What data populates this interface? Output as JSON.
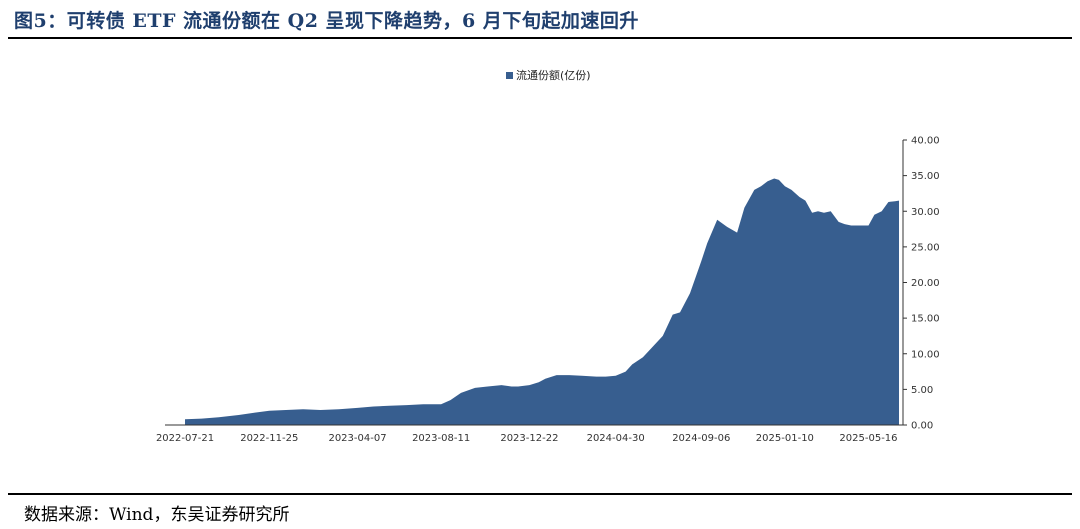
{
  "title": "图5：可转债 ETF 流通份额在 Q2 呈现下降趋势，6 月下旬起加速回升",
  "source": "数据来源：Wind，东吴证券研究所",
  "colors": {
    "area": "#375e8f",
    "title": "#1f3f6e",
    "axis": "#333333"
  },
  "chart_data": {
    "type": "area",
    "title": "",
    "xlabel": "",
    "ylabel": "",
    "legend": {
      "position": "top-center",
      "entries": [
        "流通份额(亿份)"
      ]
    },
    "x_tick_labels": [
      "2022-07-21",
      "2022-11-25",
      "2023-04-07",
      "2023-08-11",
      "2023-12-22",
      "2024-04-30",
      "2024-09-06",
      "2025-01-10",
      "2025-05-16"
    ],
    "y_tick_labels": [
      "0.00",
      "5.00",
      "10.00",
      "15.00",
      "20.00",
      "25.00",
      "30.00",
      "35.00",
      "40.00"
    ],
    "ylim": [
      0,
      40
    ],
    "y_axis_side": "right",
    "grid": false,
    "series": [
      {
        "name": "流通份额(亿份)",
        "x": [
          "2022-07-21",
          "2022-08-15",
          "2022-09-10",
          "2022-10-10",
          "2022-11-01",
          "2022-11-25",
          "2022-12-20",
          "2023-01-15",
          "2023-02-10",
          "2023-03-10",
          "2023-04-07",
          "2023-05-01",
          "2023-05-25",
          "2023-06-20",
          "2023-07-15",
          "2023-08-11",
          "2023-08-25",
          "2023-09-10",
          "2023-10-01",
          "2023-10-20",
          "2023-11-10",
          "2023-11-25",
          "2023-12-05",
          "2023-12-22",
          "2024-01-05",
          "2024-01-15",
          "2024-02-01",
          "2024-02-20",
          "2024-03-10",
          "2024-04-01",
          "2024-04-15",
          "2024-04-30",
          "2024-05-15",
          "2024-05-25",
          "2024-06-10",
          "2024-06-25",
          "2024-07-10",
          "2024-07-25",
          "2024-08-05",
          "2024-08-20",
          "2024-09-06",
          "2024-09-15",
          "2024-09-30",
          "2024-10-15",
          "2024-10-30",
          "2024-11-10",
          "2024-11-25",
          "2024-12-05",
          "2024-12-15",
          "2024-12-25",
          "2025-01-01",
          "2025-01-10",
          "2025-01-20",
          "2025-02-01",
          "2025-02-10",
          "2025-02-20",
          "2025-03-01",
          "2025-03-10",
          "2025-03-20",
          "2025-04-01",
          "2025-04-10",
          "2025-04-20",
          "2025-05-01",
          "2025-05-16",
          "2025-05-25",
          "2025-06-05",
          "2025-06-15",
          "2025-06-25",
          "2025-07-01"
        ],
        "values": [
          0.8,
          0.9,
          1.1,
          1.4,
          1.7,
          2.0,
          2.1,
          2.2,
          2.1,
          2.2,
          2.4,
          2.6,
          2.7,
          2.8,
          2.9,
          2.9,
          3.5,
          4.5,
          5.2,
          5.4,
          5.6,
          5.4,
          5.4,
          5.6,
          6.0,
          6.5,
          7.0,
          7.0,
          6.9,
          6.8,
          6.8,
          6.9,
          7.5,
          8.5,
          9.5,
          11.0,
          12.5,
          15.5,
          15.8,
          18.5,
          23.0,
          25.5,
          28.8,
          27.8,
          27.0,
          30.5,
          33.0,
          33.5,
          34.2,
          34.6,
          34.4,
          33.5,
          33.0,
          32.0,
          31.5,
          29.8,
          30.0,
          29.8,
          30.0,
          28.5,
          28.2,
          28.0,
          28.0,
          28.0,
          29.5,
          30.0,
          31.3,
          31.4,
          31.5
        ]
      }
    ]
  }
}
